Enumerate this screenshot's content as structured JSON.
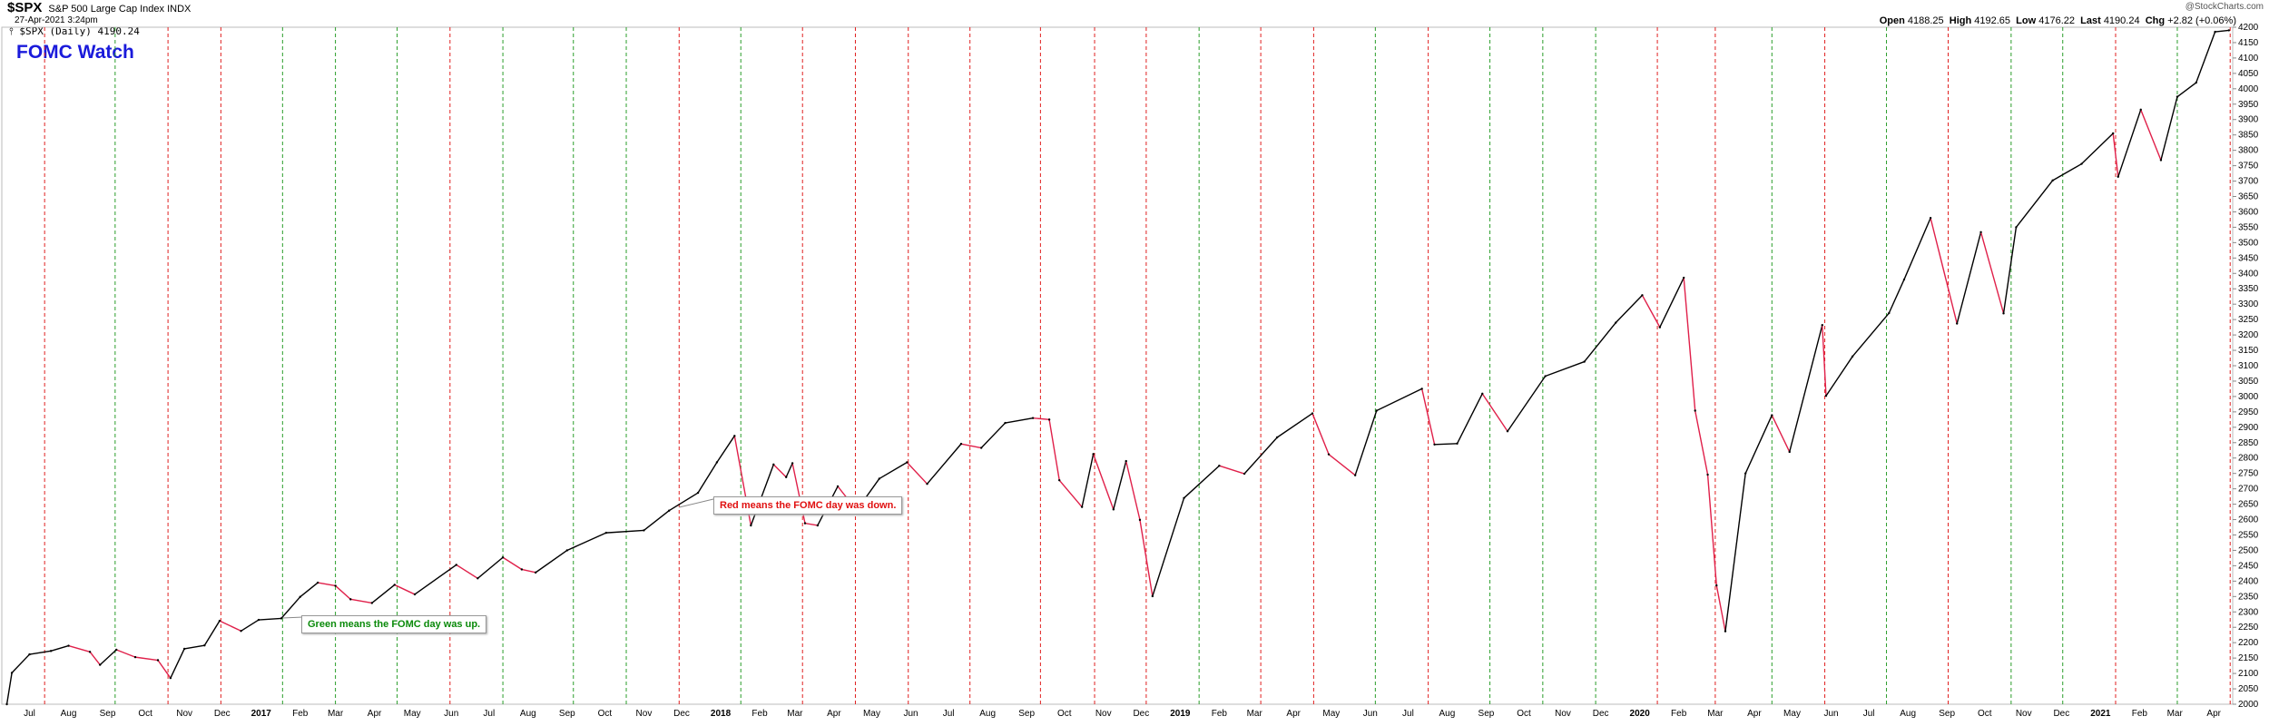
{
  "header": {
    "symbol": "$SPX",
    "name": "S&P 500 Large Cap Index INDX",
    "timestamp": "27-Apr-2021 3:24pm",
    "legend": "$SPX (Daily) 4190.24",
    "title": "FOMC Watch",
    "open_label": "Open",
    "open": "4188.25",
    "high_label": "High",
    "high": "4192.65",
    "low_label": "Low",
    "low": "4176.22",
    "last_label": "Last",
    "last": "4190.24",
    "chg_label": "Chg",
    "chg": "+2.82 (+0.06%)",
    "watermark": "@StockCharts.com"
  },
  "annotations": {
    "red_note": "Red means the FOMC day was down.",
    "green_note": "Green means the FOMC day was up."
  },
  "colors": {
    "up": "#000000",
    "down": "#e0204a",
    "fomc_up": "#2a9d2a",
    "fomc_down": "#e02020",
    "title": "#1a1adb"
  },
  "chart_data": {
    "type": "line",
    "ylim": [
      2000,
      4200
    ],
    "yticks": [
      2000,
      2050,
      2100,
      2150,
      2200,
      2250,
      2300,
      2350,
      2400,
      2450,
      2500,
      2550,
      2600,
      2650,
      2700,
      2750,
      2800,
      2850,
      2900,
      2950,
      3000,
      3050,
      3100,
      3150,
      3200,
      3250,
      3300,
      3350,
      3400,
      3450,
      3500,
      3550,
      3600,
      3650,
      3700,
      3750,
      3800,
      3850,
      3900,
      3950,
      4000,
      4050,
      4100,
      4150,
      4200
    ],
    "xticks": [
      {
        "label": "Jul",
        "i": 0,
        "bold": false
      },
      {
        "label": "Aug",
        "i": 1,
        "bold": false
      },
      {
        "label": "Sep",
        "i": 2,
        "bold": false
      },
      {
        "label": "Oct",
        "i": 3,
        "bold": false
      },
      {
        "label": "Nov",
        "i": 4,
        "bold": false
      },
      {
        "label": "Dec",
        "i": 5,
        "bold": false
      },
      {
        "label": "2017",
        "i": 6,
        "bold": true
      },
      {
        "label": "Feb",
        "i": 7,
        "bold": false
      },
      {
        "label": "Mar",
        "i": 8,
        "bold": false
      },
      {
        "label": "Apr",
        "i": 9,
        "bold": false
      },
      {
        "label": "May",
        "i": 10,
        "bold": false
      },
      {
        "label": "Jun",
        "i": 11,
        "bold": false
      },
      {
        "label": "Jul",
        "i": 12,
        "bold": false
      },
      {
        "label": "Aug",
        "i": 13,
        "bold": false
      },
      {
        "label": "Sep",
        "i": 14,
        "bold": false
      },
      {
        "label": "Oct",
        "i": 15,
        "bold": false
      },
      {
        "label": "Nov",
        "i": 16,
        "bold": false
      },
      {
        "label": "Dec",
        "i": 17,
        "bold": false
      },
      {
        "label": "2018",
        "i": 18,
        "bold": true
      },
      {
        "label": "Feb",
        "i": 19,
        "bold": false
      },
      {
        "label": "Mar",
        "i": 20,
        "bold": false
      },
      {
        "label": "Apr",
        "i": 21,
        "bold": false
      },
      {
        "label": "May",
        "i": 22,
        "bold": false
      },
      {
        "label": "Jun",
        "i": 23,
        "bold": false
      },
      {
        "label": "Jul",
        "i": 24,
        "bold": false
      },
      {
        "label": "Aug",
        "i": 25,
        "bold": false
      },
      {
        "label": "Sep",
        "i": 26,
        "bold": false
      },
      {
        "label": "Oct",
        "i": 27,
        "bold": false
      },
      {
        "label": "Nov",
        "i": 28,
        "bold": false
      },
      {
        "label": "Dec",
        "i": 29,
        "bold": false
      },
      {
        "label": "2019",
        "i": 30,
        "bold": true
      },
      {
        "label": "Feb",
        "i": 31,
        "bold": false
      },
      {
        "label": "Mar",
        "i": 32,
        "bold": false
      },
      {
        "label": "Apr",
        "i": 33,
        "bold": false
      },
      {
        "label": "May",
        "i": 34,
        "bold": false
      },
      {
        "label": "Jun",
        "i": 35,
        "bold": false
      },
      {
        "label": "Jul",
        "i": 36,
        "bold": false
      },
      {
        "label": "Aug",
        "i": 37,
        "bold": false
      },
      {
        "label": "Sep",
        "i": 38,
        "bold": false
      },
      {
        "label": "Oct",
        "i": 39,
        "bold": false
      },
      {
        "label": "Nov",
        "i": 40,
        "bold": false
      },
      {
        "label": "Dec",
        "i": 41,
        "bold": false
      },
      {
        "label": "2020",
        "i": 42,
        "bold": true
      },
      {
        "label": "Feb",
        "i": 43,
        "bold": false
      },
      {
        "label": "Mar",
        "i": 44,
        "bold": false
      },
      {
        "label": "Apr",
        "i": 45,
        "bold": false
      },
      {
        "label": "May",
        "i": 46,
        "bold": false
      },
      {
        "label": "Jun",
        "i": 47,
        "bold": false
      },
      {
        "label": "Jul",
        "i": 48,
        "bold": false
      },
      {
        "label": "Aug",
        "i": 49,
        "bold": false
      },
      {
        "label": "Sep",
        "i": 50,
        "bold": false
      },
      {
        "label": "Oct",
        "i": 51,
        "bold": false
      },
      {
        "label": "Nov",
        "i": 52,
        "bold": false
      },
      {
        "label": "Dec",
        "i": 53,
        "bold": false
      },
      {
        "label": "2021",
        "i": 54,
        "bold": true
      },
      {
        "label": "Feb",
        "i": 55,
        "bold": false
      },
      {
        "label": "Mar",
        "i": 56,
        "bold": false
      },
      {
        "label": "Apr",
        "i": 57,
        "bold": false
      }
    ],
    "fomc_days": [
      {
        "date": "2016-07-27",
        "up": false
      },
      {
        "date": "2016-09-21",
        "up": true
      },
      {
        "date": "2016-11-02",
        "up": false
      },
      {
        "date": "2016-12-14",
        "up": false
      },
      {
        "date": "2017-02-01",
        "up": true
      },
      {
        "date": "2017-03-15",
        "up": true
      },
      {
        "date": "2017-05-03",
        "up": true
      },
      {
        "date": "2017-06-14",
        "up": false
      },
      {
        "date": "2017-07-26",
        "up": true
      },
      {
        "date": "2017-09-20",
        "up": true
      },
      {
        "date": "2017-11-01",
        "up": true
      },
      {
        "date": "2017-12-13",
        "up": false
      },
      {
        "date": "2018-01-31",
        "up": true
      },
      {
        "date": "2018-03-21",
        "up": false
      },
      {
        "date": "2018-05-02",
        "up": false
      },
      {
        "date": "2018-06-13",
        "up": false
      },
      {
        "date": "2018-08-01",
        "up": false
      },
      {
        "date": "2018-09-26",
        "up": false
      },
      {
        "date": "2018-11-08",
        "up": false
      },
      {
        "date": "2018-12-19",
        "up": false
      },
      {
        "date": "2019-01-30",
        "up": true
      },
      {
        "date": "2019-03-20",
        "up": false
      },
      {
        "date": "2019-05-01",
        "up": false
      },
      {
        "date": "2019-06-19",
        "up": true
      },
      {
        "date": "2019-07-31",
        "up": false
      },
      {
        "date": "2019-09-18",
        "up": true
      },
      {
        "date": "2019-10-30",
        "up": true
      },
      {
        "date": "2019-12-11",
        "up": true
      },
      {
        "date": "2020-01-29",
        "up": false
      },
      {
        "date": "2020-03-15",
        "up": false
      },
      {
        "date": "2020-04-29",
        "up": true
      },
      {
        "date": "2020-06-10",
        "up": false
      },
      {
        "date": "2020-07-29",
        "up": true
      },
      {
        "date": "2020-09-16",
        "up": false
      },
      {
        "date": "2020-11-05",
        "up": true
      },
      {
        "date": "2020-12-16",
        "up": true
      },
      {
        "date": "2021-01-27",
        "up": false
      },
      {
        "date": "2021-03-17",
        "up": true
      },
      {
        "date": "2021-04-28",
        "up": false
      }
    ],
    "series": [
      {
        "name": "$SPX",
        "points": [
          [
            "2016-06-27",
            2000
          ],
          [
            "2016-07-01",
            2102
          ],
          [
            "2016-07-15",
            2162
          ],
          [
            "2016-08-01",
            2173
          ],
          [
            "2016-08-15",
            2190
          ],
          [
            "2016-09-01",
            2170
          ],
          [
            "2016-09-09",
            2128
          ],
          [
            "2016-09-22",
            2177
          ],
          [
            "2016-10-07",
            2153
          ],
          [
            "2016-10-25",
            2143
          ],
          [
            "2016-11-04",
            2085
          ],
          [
            "2016-11-15",
            2180
          ],
          [
            "2016-12-01",
            2191
          ],
          [
            "2016-12-13",
            2271
          ],
          [
            "2016-12-30",
            2238
          ],
          [
            "2017-01-13",
            2274
          ],
          [
            "2017-01-31",
            2279
          ],
          [
            "2017-02-15",
            2349
          ],
          [
            "2017-03-01",
            2395
          ],
          [
            "2017-03-15",
            2385
          ],
          [
            "2017-03-27",
            2341
          ],
          [
            "2017-04-13",
            2329
          ],
          [
            "2017-05-01",
            2388
          ],
          [
            "2017-05-17",
            2357
          ],
          [
            "2017-06-19",
            2453
          ],
          [
            "2017-07-06",
            2409
          ],
          [
            "2017-07-26",
            2477
          ],
          [
            "2017-08-10",
            2438
          ],
          [
            "2017-08-21",
            2428
          ],
          [
            "2017-09-15",
            2500
          ],
          [
            "2017-10-16",
            2557
          ],
          [
            "2017-11-15",
            2565
          ],
          [
            "2017-12-05",
            2629
          ],
          [
            "2017-12-28",
            2687
          ],
          [
            "2018-01-12",
            2786
          ],
          [
            "2018-01-26",
            2872
          ],
          [
            "2018-02-08",
            2581
          ],
          [
            "2018-02-26",
            2779
          ],
          [
            "2018-03-08",
            2738
          ],
          [
            "2018-03-13",
            2783
          ],
          [
            "2018-03-23",
            2588
          ],
          [
            "2018-04-02",
            2581
          ],
          [
            "2018-04-18",
            2708
          ],
          [
            "2018-05-03",
            2630
          ],
          [
            "2018-05-21",
            2733
          ],
          [
            "2018-06-12",
            2786
          ],
          [
            "2018-06-28",
            2716
          ],
          [
            "2018-07-25",
            2846
          ],
          [
            "2018-08-10",
            2833
          ],
          [
            "2018-08-29",
            2914
          ],
          [
            "2018-09-20",
            2930
          ],
          [
            "2018-10-03",
            2925
          ],
          [
            "2018-10-11",
            2728
          ],
          [
            "2018-10-29",
            2641
          ],
          [
            "2018-11-07",
            2813
          ],
          [
            "2018-11-23",
            2633
          ],
          [
            "2018-12-03",
            2790
          ],
          [
            "2018-12-14",
            2599
          ],
          [
            "2018-12-24",
            2351
          ],
          [
            "2019-01-18",
            2670
          ],
          [
            "2019-02-15",
            2775
          ],
          [
            "2019-03-07",
            2749
          ],
          [
            "2019-04-02",
            2867
          ],
          [
            "2019-04-30",
            2945
          ],
          [
            "2019-05-13",
            2812
          ],
          [
            "2019-06-03",
            2744
          ],
          [
            "2019-06-20",
            2954
          ],
          [
            "2019-07-26",
            3025
          ],
          [
            "2019-08-05",
            2844
          ],
          [
            "2019-08-23",
            2847
          ],
          [
            "2019-09-12",
            3009
          ],
          [
            "2019-10-02",
            2887
          ],
          [
            "2019-11-01",
            3066
          ],
          [
            "2019-12-02",
            3113
          ],
          [
            "2019-12-27",
            3240
          ],
          [
            "2020-01-17",
            3329
          ],
          [
            "2020-01-31",
            3225
          ],
          [
            "2020-02-19",
            3386
          ],
          [
            "2020-02-28",
            2954
          ],
          [
            "2020-03-09",
            2746
          ],
          [
            "2020-03-16",
            2386
          ],
          [
            "2020-03-23",
            2237
          ],
          [
            "2020-04-08",
            2750
          ],
          [
            "2020-04-29",
            2939
          ],
          [
            "2020-05-13",
            2820
          ],
          [
            "2020-06-08",
            3232
          ],
          [
            "2020-06-11",
            3002
          ],
          [
            "2020-07-02",
            3130
          ],
          [
            "2020-07-31",
            3271
          ],
          [
            "2020-08-12",
            3380
          ],
          [
            "2020-09-02",
            3580
          ],
          [
            "2020-09-23",
            3237
          ],
          [
            "2020-10-12",
            3534
          ],
          [
            "2020-10-30",
            3270
          ],
          [
            "2020-11-09",
            3550
          ],
          [
            "2020-12-08",
            3702
          ],
          [
            "2020-12-31",
            3756
          ],
          [
            "2021-01-25",
            3855
          ],
          [
            "2021-01-29",
            3714
          ],
          [
            "2021-02-16",
            3932
          ],
          [
            "2021-03-04",
            3768
          ],
          [
            "2021-03-17",
            3974
          ],
          [
            "2021-04-01",
            4020
          ],
          [
            "2021-04-16",
            4185
          ],
          [
            "2021-04-27",
            4190
          ]
        ]
      }
    ]
  }
}
